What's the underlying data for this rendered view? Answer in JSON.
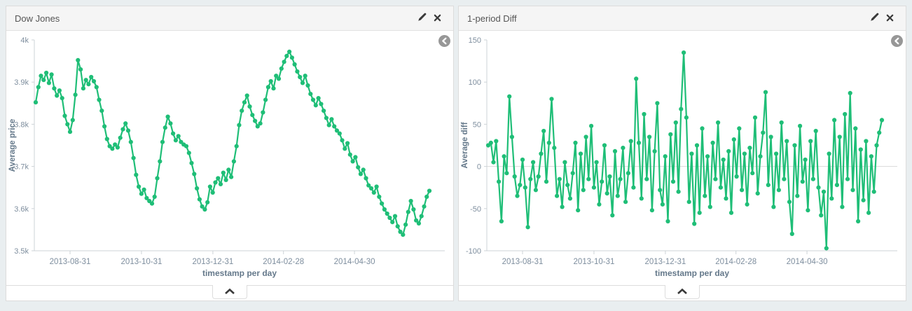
{
  "page": {
    "background": "#e9eef0",
    "accent_green": "#1fbe77"
  },
  "panels": [
    {
      "title": "Dow Jones",
      "icons": {
        "edit": "pencil",
        "close": "x-cross",
        "back": "circled-left-arrow",
        "collapse": "chevron-up"
      }
    },
    {
      "title": "1-period Diff",
      "icons": {
        "edit": "pencil",
        "close": "x-cross",
        "back": "circled-left-arrow",
        "collapse": "chevron-up"
      }
    }
  ],
  "chart_data": [
    {
      "type": "line",
      "title": "Dow Jones",
      "xlabel": "timestamp per day",
      "ylabel": "Average price",
      "x_tick_labels": [
        "2013-08-31",
        "2013-10-31",
        "2013-12-31",
        "2014-02-28",
        "2014-04-30"
      ],
      "y_tick_labels": [
        "4k",
        "3.9k",
        "3.8k",
        "3.7k",
        "3.6k",
        "3.5k"
      ],
      "ylim": [
        3500,
        4000
      ],
      "x_range": [
        "2013-08-01",
        "2014-05-30"
      ],
      "grid": false,
      "zero_line": false,
      "color": "#1fbe77",
      "marker": "circle",
      "values": [
        3852,
        3888,
        3915,
        3905,
        3922,
        3898,
        3918,
        3885,
        3868,
        3880,
        3862,
        3820,
        3800,
        3782,
        3810,
        3870,
        3952,
        3930,
        3885,
        3905,
        3895,
        3912,
        3902,
        3888,
        3858,
        3832,
        3795,
        3765,
        3748,
        3742,
        3752,
        3745,
        3768,
        3788,
        3802,
        3785,
        3758,
        3720,
        3680,
        3652,
        3635,
        3645,
        3625,
        3618,
        3612,
        3628,
        3672,
        3712,
        3758,
        3792,
        3818,
        3802,
        3778,
        3762,
        3772,
        3758,
        3752,
        3748,
        3732,
        3708,
        3682,
        3648,
        3622,
        3605,
        3598,
        3615,
        3652,
        3638,
        3662,
        3672,
        3658,
        3685,
        3668,
        3692,
        3675,
        3712,
        3748,
        3798,
        3832,
        3852,
        3868,
        3842,
        3822,
        3808,
        3795,
        3802,
        3828,
        3858,
        3888,
        3902,
        3885,
        3915,
        3908,
        3932,
        3948,
        3962,
        3972,
        3958,
        3942,
        3925,
        3912,
        3898,
        3915,
        3892,
        3872,
        3858,
        3845,
        3862,
        3848,
        3832,
        3815,
        3798,
        3812,
        3795,
        3785,
        3778,
        3762,
        3742,
        3755,
        3728,
        3712,
        3722,
        3698,
        3682,
        3692,
        3672,
        3655,
        3648,
        3638,
        3652,
        3628,
        3612,
        3598,
        3588,
        3578,
        3568,
        3582,
        3558,
        3545,
        3538,
        3562,
        3592,
        3618,
        3598,
        3572,
        3565,
        3582,
        3605,
        3628,
        3642
      ]
    },
    {
      "type": "line",
      "title": "1-period Diff",
      "xlabel": "timestamp per day",
      "ylabel": "Average diff",
      "x_tick_labels": [
        "2013-08-31",
        "2013-10-31",
        "2013-12-31",
        "2014-02-28",
        "2014-04-30"
      ],
      "y_tick_labels": [
        "150",
        "100",
        "50",
        "0",
        "-50",
        "-100"
      ],
      "ylim": [
        -100,
        150
      ],
      "x_range": [
        "2013-08-01",
        "2014-05-30"
      ],
      "grid": false,
      "zero_line": true,
      "color": "#1fbe77",
      "marker": "circle",
      "values": [
        25,
        28,
        5,
        30,
        -18,
        -65,
        12,
        -8,
        83,
        35,
        -12,
        -35,
        -22,
        8,
        -25,
        -72,
        -15,
        5,
        -28,
        -12,
        15,
        42,
        -18,
        28,
        80,
        22,
        -35,
        -15,
        -48,
        5,
        -22,
        -38,
        -8,
        28,
        -52,
        15,
        -28,
        35,
        -15,
        48,
        -25,
        5,
        -45,
        -18,
        25,
        -32,
        -12,
        -58,
        18,
        -35,
        -15,
        22,
        -42,
        -8,
        30,
        -25,
        104,
        28,
        -38,
        62,
        -15,
        35,
        -52,
        18,
        75,
        -28,
        -45,
        12,
        -65,
        38,
        -18,
        52,
        -30,
        68,
        135,
        58,
        -42,
        15,
        -68,
        25,
        -55,
        45,
        -35,
        12,
        -48,
        28,
        -15,
        52,
        -25,
        8,
        -38,
        18,
        -55,
        32,
        -12,
        45,
        -28,
        15,
        -45,
        22,
        -8,
        58,
        -32,
        12,
        40,
        88,
        -22,
        35,
        -48,
        15,
        -28,
        52,
        -15,
        30,
        -42,
        -80,
        25,
        -35,
        48,
        -18,
        8,
        -52,
        30,
        -15,
        42,
        -25,
        -58,
        -30,
        -97,
        15,
        -38,
        55,
        -22,
        35,
        -48,
        62,
        -15,
        87,
        -28,
        45,
        -65,
        20,
        -40,
        30,
        -55,
        12,
        -30,
        25,
        40,
        55
      ]
    }
  ]
}
